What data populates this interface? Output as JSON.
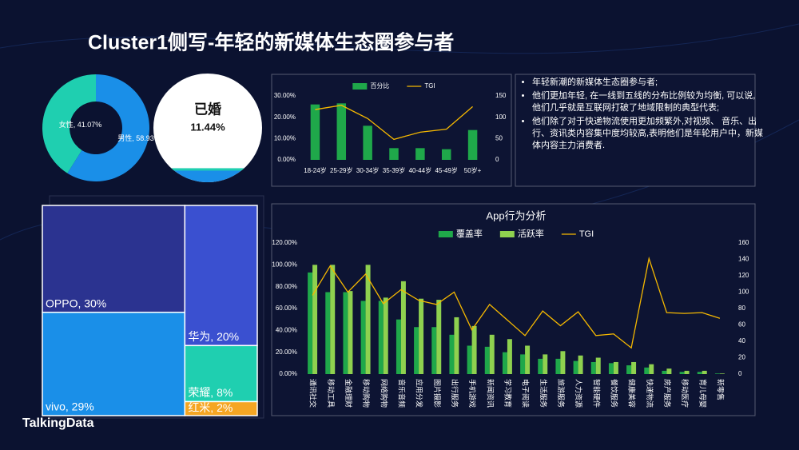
{
  "title": "Cluster1侧写-年轻的新媒体生态圈参与者",
  "bullets": [
    "年轻新潮的新媒体生态圈参与者;",
    "他们更加年轻, 在一线到五线的分布比例较为均衡, 可以说, 他们几乎就是互联网打破了地域限制的典型代表;",
    "他们除了对于快递物流使用更加频繁外,对视频、 音乐、出行、资讯类内容集中度均较高,表明他们是年轮用户中，新媒体内容主力消费者."
  ],
  "brand": "TalkingData",
  "chart_data": [
    {
      "type": "pie",
      "values": [
        41.07,
        58.93
      ],
      "value_labels": [
        "女性, 41.07%",
        "男性, 58.93%"
      ],
      "colors": [
        "#1fcfb0",
        "#1a8fe8"
      ]
    },
    {
      "type": "gauge",
      "label": "已婚",
      "value": 11.44,
      "value_label": "11.44%",
      "color": "#1a8fe8"
    },
    {
      "type": "bar",
      "categories": [
        "18-24岁",
        "25-29岁",
        "30-34岁",
        "35-39岁",
        "40-44岁",
        "45-49岁",
        "50岁+"
      ],
      "series": [
        {
          "name": "百分比",
          "color": "#1fa84a",
          "values": [
            26,
            26.5,
            16,
            5.5,
            5.5,
            5,
            14
          ]
        },
        {
          "name": "TGI",
          "color": "#f5b800",
          "type": "line",
          "axis": "y2",
          "values": [
            118,
            128,
            97,
            48,
            65,
            72,
            125
          ]
        }
      ],
      "ylim": [
        0,
        30
      ],
      "yticks": [
        {
          "value": 0,
          "label": "0.00%"
        },
        {
          "value": 10,
          "label": "10.00%"
        },
        {
          "value": 20,
          "label": "20.00%"
        },
        {
          "value": 30,
          "label": "30.00%"
        }
      ],
      "y2lim": [
        0,
        150
      ],
      "y2ticks": [
        0,
        50,
        100,
        150
      ],
      "grid": false
    },
    {
      "type": "treemap",
      "values": [
        30,
        29,
        20,
        8,
        2
      ],
      "value_labels": [
        "OPPO, 30%",
        "vivo, 29%",
        "华为, 20%",
        "荣耀, 8%",
        "红米, 2%"
      ],
      "colors": [
        "#2b3390",
        "#1a8fe8",
        "#3a50d0",
        "#1fcfb0",
        "#f5a623"
      ]
    },
    {
      "type": "bar",
      "title": "App行为分析",
      "categories": [
        "通讯社交",
        "移动工具",
        "金融理财",
        "移动购物",
        "网络购物",
        "音乐音频",
        "应用分发",
        "图片摄影",
        "出行服务",
        "手机游戏",
        "新闻资讯",
        "学习教育",
        "电子阅读",
        "生活服务",
        "旅游服务",
        "人力资源",
        "智能硬件",
        "餐饮服务",
        "健康美容",
        "快递物流",
        "房产服务",
        "移动医疗",
        "育儿母婴",
        "新零售"
      ],
      "series": [
        {
          "name": "覆盖率",
          "color": "#1fa84a",
          "values": [
            93,
            75,
            75,
            67,
            67,
            50,
            43,
            43,
            36,
            26,
            25,
            20,
            18,
            14,
            14,
            12,
            11,
            10,
            8,
            6,
            3,
            2,
            2,
            0.5
          ]
        },
        {
          "name": "活跃率",
          "color": "#8fd14f",
          "values": [
            100,
            100,
            76,
            100,
            70,
            85,
            69,
            68,
            52,
            44,
            36,
            32,
            26,
            18,
            21,
            17,
            15,
            11,
            11,
            9,
            5,
            3,
            3,
            0.5
          ]
        },
        {
          "name": "TGI",
          "color": "#f5b800",
          "type": "line",
          "axis": "y2",
          "values": [
            96,
            132,
            100,
            122,
            86,
            103,
            90,
            85,
            100,
            54,
            85,
            66,
            47,
            77,
            59,
            76,
            47,
            49,
            32,
            141,
            75,
            74,
            75,
            68
          ]
        }
      ],
      "ylim": [
        0,
        120
      ],
      "yticks": [
        {
          "value": 0,
          "label": "0.00%"
        },
        {
          "value": 20,
          "label": "20.00%"
        },
        {
          "value": 40,
          "label": "40.00%"
        },
        {
          "value": 60,
          "label": "60.00%"
        },
        {
          "value": 80,
          "label": "80.00%"
        },
        {
          "value": 100,
          "label": "100.00%"
        },
        {
          "value": 120,
          "label": "120.00%"
        }
      ],
      "y2lim": [
        0,
        160
      ],
      "y2ticks": [
        0,
        20,
        40,
        60,
        80,
        100,
        120,
        140,
        160
      ],
      "grid": false
    }
  ]
}
